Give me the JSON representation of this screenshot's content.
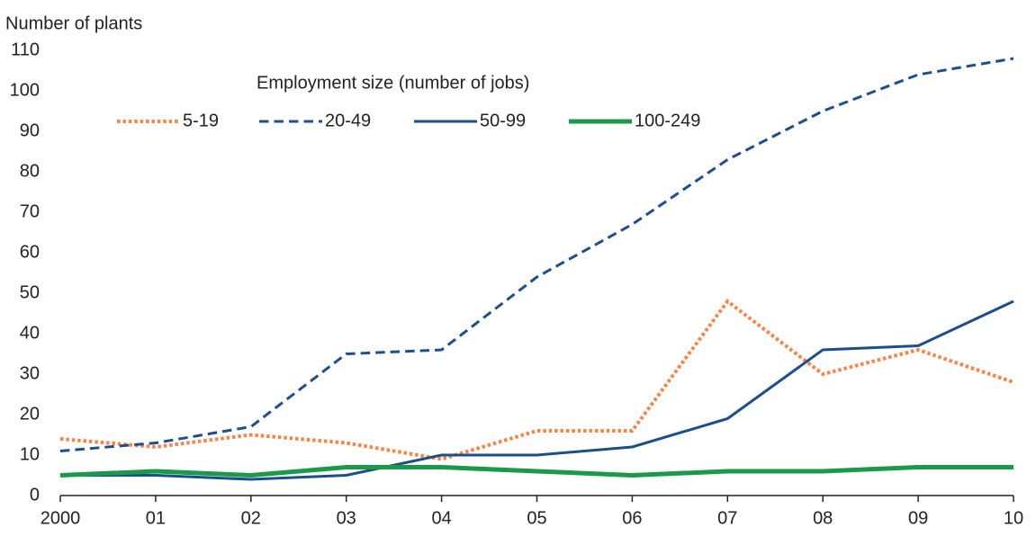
{
  "chart_data": {
    "type": "line",
    "y_label": "Number of plants",
    "legend_title": "Employment size (number of jobs)",
    "categories": [
      "2000",
      "01",
      "02",
      "03",
      "04",
      "05",
      "06",
      "07",
      "08",
      "09",
      "10"
    ],
    "series": [
      {
        "name": "5-19",
        "color": "#f4874b",
        "style": "dotted",
        "width": 4,
        "values": [
          14,
          12,
          15,
          13,
          9,
          16,
          16,
          48,
          30,
          36,
          28
        ]
      },
      {
        "name": "20-49",
        "color": "#1f4e8c",
        "style": "dashed",
        "width": 3,
        "values": [
          11,
          13,
          17,
          35,
          36,
          54,
          67,
          83,
          95,
          104,
          108
        ]
      },
      {
        "name": "50-99",
        "color": "#1a4f8b",
        "style": "solid",
        "width": 3,
        "values": [
          5,
          5,
          4,
          5,
          10,
          10,
          12,
          19,
          36,
          37,
          48
        ]
      },
      {
        "name": "100-249",
        "color": "#1a9a48",
        "style": "solid",
        "width": 5,
        "values": [
          5,
          6,
          5,
          7,
          7,
          6,
          5,
          6,
          6,
          7,
          7
        ]
      }
    ],
    "ylim": [
      0,
      110
    ],
    "yticks": [
      0,
      10,
      20,
      30,
      40,
      50,
      60,
      70,
      80,
      90,
      100,
      110
    ],
    "grid": false
  }
}
